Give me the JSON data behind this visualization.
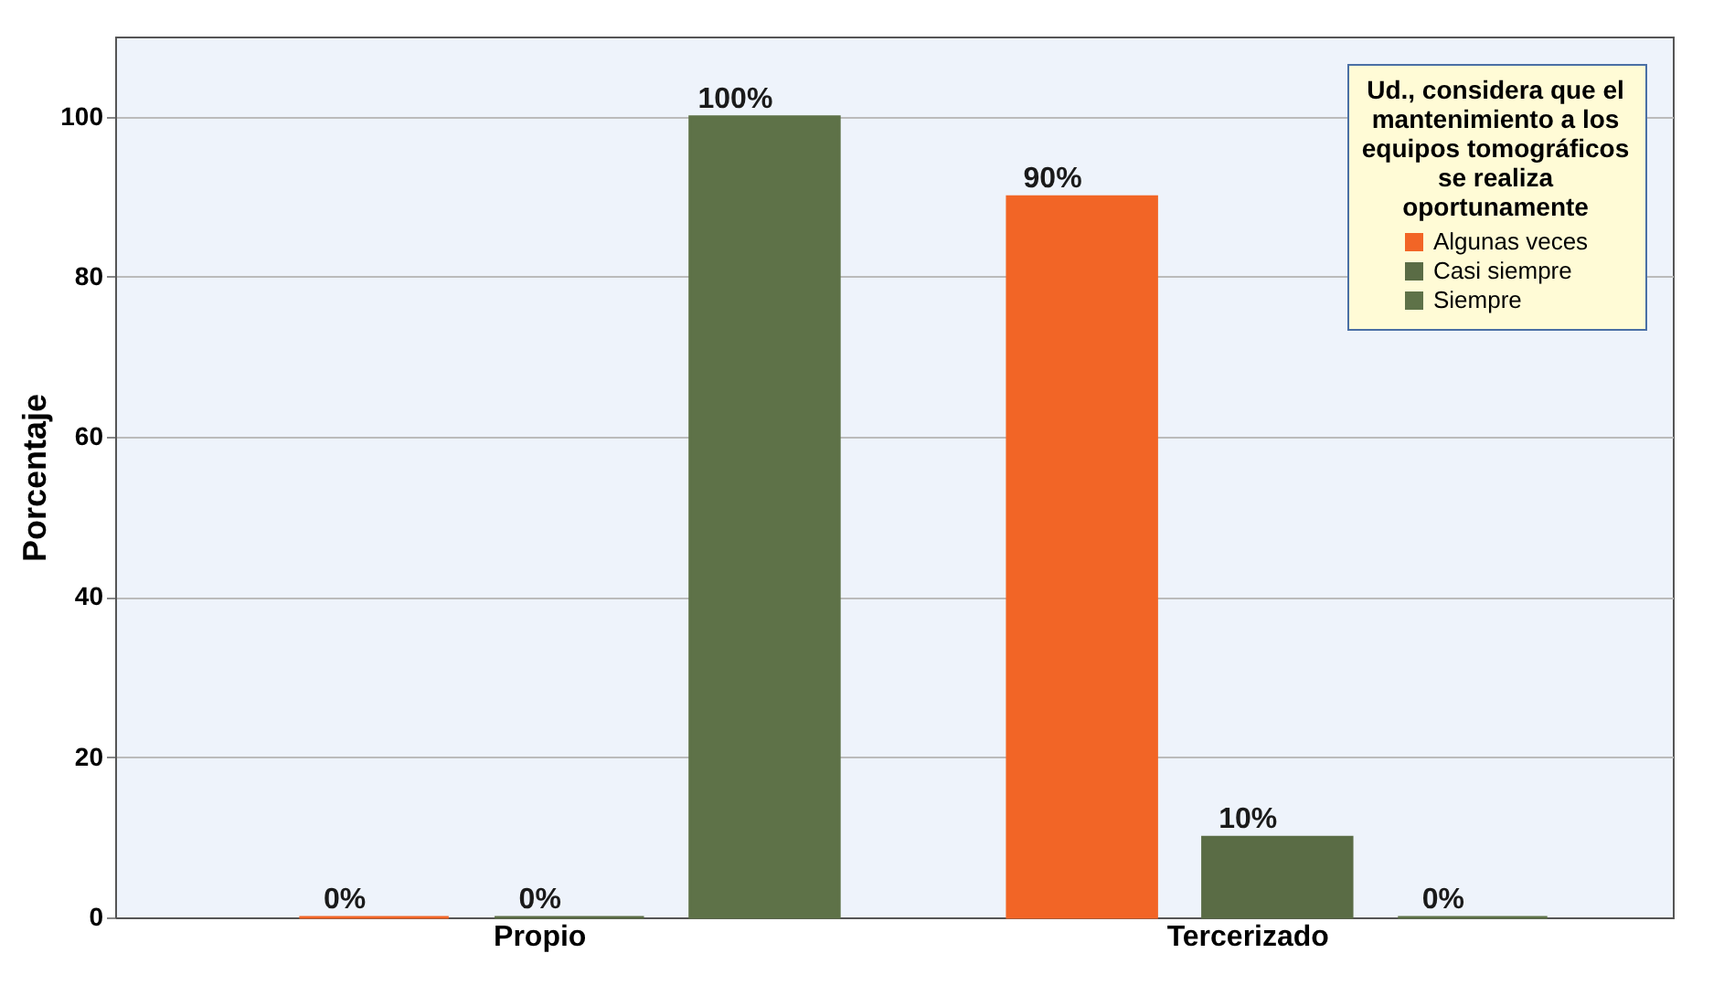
{
  "chart_data": {
    "type": "bar",
    "ylabel": "Porcentaje",
    "legend_title": "Ud., considera que el mantenimiento a los equipos tomográficos se realiza oportunamente",
    "categories": [
      "Propio",
      "Tercerizado"
    ],
    "series": [
      {
        "name": "Algunas veces",
        "color": "#f26526",
        "values": [
          0,
          90
        ],
        "value_labels": [
          "0%",
          "90%"
        ]
      },
      {
        "name": "Casi siempre",
        "color": "#5a6c45",
        "values": [
          0,
          10
        ],
        "value_labels": [
          "0%",
          "10%"
        ]
      },
      {
        "name": "Siempre",
        "color": "#5e7248",
        "values": [
          100,
          0
        ],
        "value_labels": [
          "100%",
          "0%"
        ]
      }
    ],
    "ylim": [
      0,
      110
    ],
    "yticks": [
      0,
      20,
      40,
      60,
      80,
      100
    ],
    "grid": "y",
    "legend": "top right"
  }
}
